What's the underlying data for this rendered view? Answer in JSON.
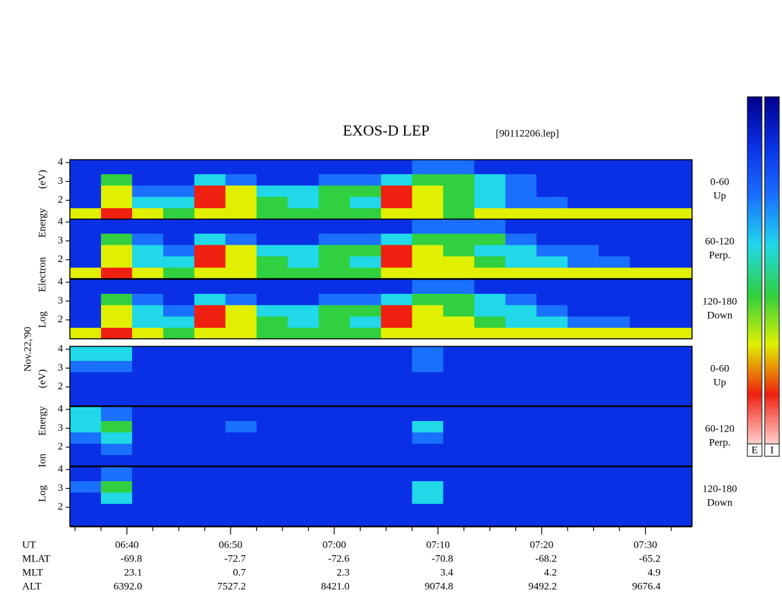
{
  "title": "EXOS-D LEP",
  "file": "[90112206.lep]",
  "date": "Nov.22,'90",
  "electron_ylabel": "Log Electron Energy (eV)",
  "ion_ylabel": "Log Ion Energy (eV)",
  "colorscale": [
    "#00008b",
    "#0a30e6",
    "#1a70ff",
    "#20d8e8",
    "#30d040",
    "#e0f000",
    "#f02010",
    "#ffd0d0"
  ],
  "colorbar": {
    "labels": [
      "E",
      "I"
    ]
  },
  "time_axis": {
    "ut_label": "UT",
    "xlim": [
      394.5,
      454.5
    ],
    "xticks": [
      {
        "value": 400,
        "label": "06:40"
      },
      {
        "value": 410,
        "label": "06:50"
      },
      {
        "value": 420,
        "label": "07:00"
      },
      {
        "value": 430,
        "label": "07:10"
      },
      {
        "value": 440,
        "label": "07:20"
      },
      {
        "value": 450,
        "label": "07:30"
      }
    ],
    "minor_xticks": [
      395,
      397.5,
      402.5,
      405,
      407.5,
      412.5,
      415,
      417.5,
      422.5,
      425,
      427.5,
      432.5,
      435,
      437.5,
      442.5,
      445,
      447.5,
      452.5
    ],
    "time_bins": [
      394.5,
      397.5,
      400.5,
      403.5,
      406.5,
      409.5,
      412.5,
      415.5,
      418.5,
      421.5,
      424.5,
      427.5,
      430.5,
      433.5,
      436.5,
      439.5,
      442.5,
      445.5,
      448.5,
      451.5,
      454.5
    ]
  },
  "orbit": {
    "rows": [
      {
        "label": "MLAT",
        "values": [
          "-69.8",
          "-72.7",
          "-72.6",
          "-70.8",
          "-68.2",
          "-65.2"
        ]
      },
      {
        "label": "MLT",
        "values": [
          "23.1",
          "0.7",
          "2.3",
          "3.4",
          "4.2",
          "4.9"
        ]
      },
      {
        "label": "ALT",
        "values": [
          "6392.0",
          "7527.2",
          "8421.0",
          "9074.8",
          "9492.2",
          "9676.4"
        ]
      }
    ]
  },
  "chart_data": [
    {
      "type": "heatmap",
      "angle": "0-60",
      "direction": "Up",
      "ylim": [
        1,
        4.15
      ],
      "yticks": [
        2,
        3,
        4
      ],
      "energy_bins": [
        1,
        1.6,
        2.2,
        2.8,
        3.4,
        4.15
      ],
      "z": [
        [
          5,
          6,
          5,
          4,
          5,
          5,
          4,
          4,
          4,
          4,
          5,
          5,
          4,
          5,
          5,
          5,
          5,
          5,
          5,
          5
        ],
        [
          1,
          5,
          3,
          3,
          6,
          5,
          4,
          3,
          4,
          3,
          6,
          5,
          4,
          3,
          2,
          2,
          1,
          1,
          1,
          1
        ],
        [
          1,
          5,
          2,
          2,
          6,
          5,
          3,
          3,
          4,
          4,
          6,
          5,
          4,
          3,
          2,
          1,
          1,
          1,
          1,
          1
        ],
        [
          1,
          4,
          1,
          1,
          3,
          2,
          1,
          1,
          2,
          2,
          3,
          4,
          4,
          3,
          2,
          1,
          1,
          1,
          1,
          1
        ],
        [
          1,
          1,
          1,
          1,
          1,
          1,
          1,
          1,
          1,
          1,
          1,
          2,
          2,
          1,
          1,
          1,
          1,
          1,
          1,
          1
        ]
      ]
    },
    {
      "type": "heatmap",
      "angle": "60-120",
      "direction": "Perp.",
      "ylim": [
        1,
        4.15
      ],
      "yticks": [
        2,
        3,
        4
      ],
      "energy_bins": [
        1,
        1.6,
        2.2,
        2.8,
        3.4,
        4.15
      ],
      "z": [
        [
          5,
          6,
          5,
          4,
          5,
          5,
          4,
          4,
          4,
          4,
          5,
          5,
          5,
          5,
          5,
          5,
          5,
          5,
          5,
          5
        ],
        [
          1,
          5,
          3,
          3,
          6,
          5,
          4,
          3,
          4,
          3,
          6,
          5,
          5,
          4,
          3,
          3,
          2,
          2,
          1,
          1
        ],
        [
          1,
          5,
          3,
          2,
          6,
          5,
          3,
          3,
          4,
          4,
          6,
          5,
          4,
          3,
          3,
          2,
          2,
          1,
          1,
          1
        ],
        [
          1,
          4,
          2,
          1,
          3,
          2,
          1,
          1,
          2,
          2,
          3,
          4,
          4,
          4,
          2,
          1,
          1,
          1,
          1,
          1
        ],
        [
          1,
          1,
          1,
          1,
          1,
          1,
          1,
          1,
          1,
          1,
          1,
          2,
          2,
          2,
          1,
          1,
          1,
          1,
          1,
          1
        ]
      ]
    },
    {
      "type": "heatmap",
      "angle": "120-180",
      "direction": "Down",
      "ylim": [
        1,
        4.15
      ],
      "yticks": [
        2,
        3,
        4
      ],
      "energy_bins": [
        1,
        1.6,
        2.2,
        2.8,
        3.4,
        4.15
      ],
      "z": [
        [
          5,
          6,
          5,
          4,
          5,
          5,
          4,
          4,
          4,
          4,
          5,
          5,
          5,
          5,
          5,
          5,
          5,
          5,
          5,
          5
        ],
        [
          1,
          5,
          3,
          3,
          6,
          5,
          4,
          3,
          4,
          3,
          6,
          5,
          5,
          4,
          3,
          3,
          2,
          2,
          1,
          1
        ],
        [
          1,
          5,
          3,
          2,
          6,
          5,
          3,
          3,
          4,
          4,
          6,
          5,
          4,
          3,
          3,
          2,
          1,
          1,
          1,
          1
        ],
        [
          1,
          4,
          2,
          1,
          3,
          2,
          1,
          1,
          2,
          2,
          3,
          4,
          4,
          3,
          2,
          1,
          1,
          1,
          1,
          1
        ],
        [
          1,
          1,
          1,
          1,
          1,
          1,
          1,
          1,
          1,
          1,
          1,
          2,
          2,
          1,
          1,
          1,
          1,
          1,
          1,
          1
        ]
      ]
    },
    {
      "type": "heatmap",
      "angle": "0-60",
      "direction": "Up",
      "ylim": [
        1,
        4.15
      ],
      "yticks": [
        2,
        3,
        4
      ],
      "energy_bins": [
        1,
        1.6,
        2.2,
        2.8,
        3.4,
        4.15
      ],
      "z": [
        [
          1,
          1,
          1,
          1,
          1,
          1,
          1,
          1,
          1,
          1,
          1,
          1,
          1,
          1,
          1,
          1,
          1,
          1,
          1,
          1
        ],
        [
          1,
          1,
          1,
          1,
          1,
          1,
          1,
          1,
          1,
          1,
          1,
          1,
          1,
          1,
          1,
          1,
          1,
          1,
          1,
          1
        ],
        [
          1,
          1,
          1,
          1,
          1,
          1,
          1,
          1,
          1,
          1,
          1,
          1,
          1,
          1,
          1,
          1,
          1,
          1,
          1,
          1
        ],
        [
          2,
          2,
          1,
          1,
          1,
          1,
          1,
          1,
          1,
          1,
          1,
          2,
          1,
          1,
          1,
          1,
          1,
          1,
          1,
          1
        ],
        [
          3,
          3,
          1,
          1,
          1,
          1,
          1,
          1,
          1,
          1,
          1,
          2,
          1,
          1,
          1,
          1,
          1,
          1,
          1,
          1
        ]
      ]
    },
    {
      "type": "heatmap",
      "angle": "60-120",
      "direction": "Perp.",
      "ylim": [
        1,
        4.15
      ],
      "yticks": [
        2,
        3,
        4
      ],
      "energy_bins": [
        1,
        1.6,
        2.2,
        2.8,
        3.4,
        4.15
      ],
      "z": [
        [
          1,
          1,
          1,
          1,
          1,
          1,
          1,
          1,
          1,
          1,
          1,
          1,
          1,
          1,
          1,
          1,
          1,
          1,
          1,
          1
        ],
        [
          1,
          2,
          1,
          1,
          1,
          1,
          1,
          1,
          1,
          1,
          1,
          1,
          1,
          1,
          1,
          1,
          1,
          1,
          1,
          1
        ],
        [
          2,
          3,
          1,
          1,
          1,
          1,
          1,
          1,
          1,
          1,
          1,
          2,
          1,
          1,
          1,
          1,
          1,
          1,
          1,
          1
        ],
        [
          3,
          4,
          1,
          1,
          1,
          2,
          1,
          1,
          1,
          1,
          1,
          3,
          1,
          1,
          1,
          1,
          1,
          1,
          1,
          1
        ],
        [
          3,
          2,
          1,
          1,
          1,
          1,
          1,
          1,
          1,
          1,
          1,
          1,
          1,
          1,
          1,
          1,
          1,
          1,
          1,
          1
        ]
      ]
    },
    {
      "type": "heatmap",
      "angle": "120-180",
      "direction": "Down",
      "ylim": [
        1,
        4.15
      ],
      "yticks": [
        2,
        3,
        4
      ],
      "energy_bins": [
        1,
        1.6,
        2.2,
        2.8,
        3.4,
        4.15
      ],
      "z": [
        [
          1,
          1,
          1,
          1,
          1,
          1,
          1,
          1,
          1,
          1,
          1,
          1,
          1,
          1,
          1,
          1,
          1,
          1,
          1,
          1
        ],
        [
          1,
          1,
          1,
          1,
          1,
          1,
          1,
          1,
          1,
          1,
          1,
          1,
          1,
          1,
          1,
          1,
          1,
          1,
          1,
          1
        ],
        [
          1,
          3,
          1,
          1,
          1,
          1,
          1,
          1,
          1,
          1,
          1,
          3,
          1,
          1,
          1,
          1,
          1,
          1,
          1,
          1
        ],
        [
          2,
          4,
          1,
          1,
          1,
          1,
          1,
          1,
          1,
          1,
          1,
          3,
          1,
          1,
          1,
          1,
          1,
          1,
          1,
          1
        ],
        [
          1,
          2,
          1,
          1,
          1,
          1,
          1,
          1,
          1,
          1,
          1,
          1,
          1,
          1,
          1,
          1,
          1,
          1,
          1,
          1
        ]
      ]
    }
  ]
}
